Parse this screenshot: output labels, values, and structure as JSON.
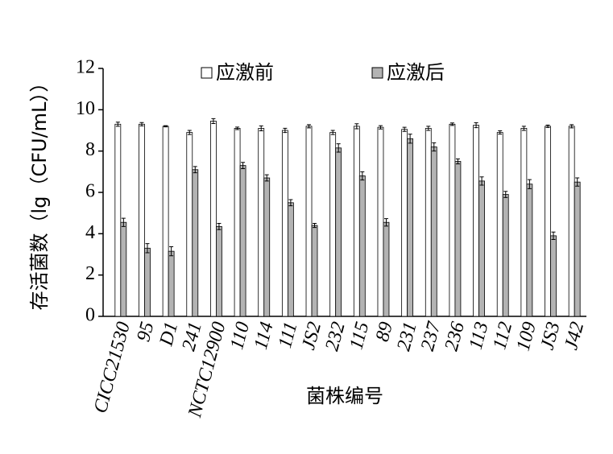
{
  "chart_data": {
    "type": "bar",
    "x_label": "菌株编号",
    "y_label": "存活菌数（lg（CFU/mL））",
    "categories": [
      "CICC21530",
      "95",
      "D1",
      "241",
      "NCTC12900",
      "110",
      "114",
      "111",
      "JS2",
      "232",
      "115",
      "89",
      "231",
      "237",
      "236",
      "113",
      "112",
      "109",
      "JS3",
      "J42"
    ],
    "series": [
      {
        "name": "应激前",
        "color": "#ffffff",
        "values": [
          9.3,
          9.3,
          9.2,
          8.9,
          9.45,
          9.1,
          9.1,
          9.0,
          9.2,
          8.9,
          9.2,
          9.15,
          9.05,
          9.1,
          9.3,
          9.25,
          8.9,
          9.1,
          9.2,
          9.2
        ],
        "errors": [
          0.1,
          0.08,
          0.03,
          0.1,
          0.12,
          0.06,
          0.12,
          0.1,
          0.08,
          0.1,
          0.12,
          0.08,
          0.1,
          0.1,
          0.06,
          0.12,
          0.08,
          0.1,
          0.06,
          0.08
        ]
      },
      {
        "name": "应激后",
        "color": "#b3b3b3",
        "values": [
          4.55,
          3.3,
          3.15,
          7.1,
          4.35,
          7.3,
          6.7,
          5.5,
          4.4,
          8.15,
          6.8,
          4.55,
          8.6,
          8.2,
          7.5,
          6.55,
          5.9,
          6.4,
          3.9,
          6.5
        ],
        "errors": [
          0.2,
          0.22,
          0.22,
          0.15,
          0.15,
          0.15,
          0.15,
          0.15,
          0.1,
          0.2,
          0.2,
          0.18,
          0.22,
          0.2,
          0.12,
          0.2,
          0.15,
          0.22,
          0.18,
          0.2
        ]
      }
    ],
    "ylim": [
      0,
      12
    ],
    "yticks": [
      0,
      2,
      4,
      6,
      8,
      10,
      12
    ]
  }
}
